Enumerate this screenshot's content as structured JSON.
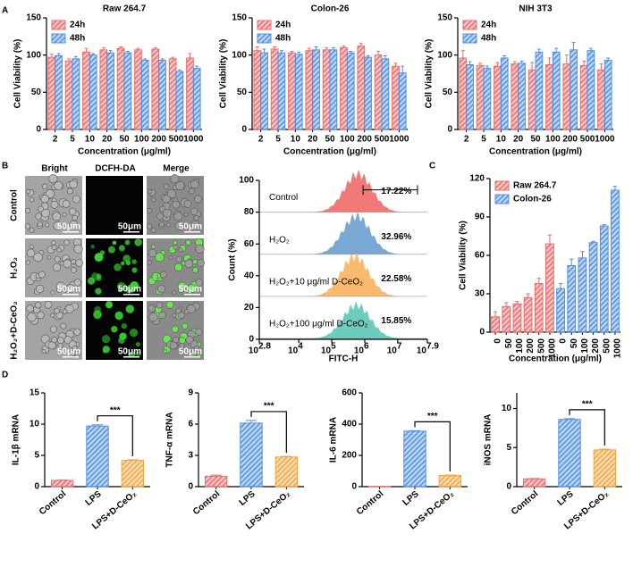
{
  "panel_labels": [
    "A",
    "B",
    "C",
    "D"
  ],
  "micrographs": {
    "columns": [
      "Bright",
      "DCFH-DA",
      "Merge"
    ],
    "rows": [
      "Control",
      "H₂O₂",
      "H₂O₂+D-CeO₂"
    ],
    "scale_bar": "50μm"
  },
  "chart_data": [
    {
      "type": "bar",
      "title": "Raw 264.7",
      "xlabel": "Concentration (μg/ml)",
      "ylabel": "Cell Viability (%)",
      "categories": [
        "2",
        "5",
        "10",
        "20",
        "50",
        "100",
        "200",
        "500",
        "1000"
      ],
      "ylim": [
        0,
        150
      ],
      "yticks": [
        0,
        50,
        100,
        150
      ],
      "legend": "upper left",
      "series": [
        {
          "name": "24h",
          "color": "#ee6b6b",
          "values": [
            97,
            92,
            104,
            107,
            109,
            107,
            108,
            95,
            96
          ],
          "errors": [
            4,
            3,
            5,
            3,
            2,
            2,
            2,
            2,
            6
          ]
        },
        {
          "name": "48h",
          "color": "#4f8fe8",
          "values": [
            99,
            95,
            100,
            103,
            103,
            93,
            93,
            78,
            82
          ],
          "errors": [
            3,
            3,
            2,
            3,
            2,
            2,
            2,
            2,
            3
          ]
        }
      ]
    },
    {
      "type": "bar",
      "title": "Colon-26",
      "xlabel": "Concentration (μg/ml)",
      "ylabel": "Cell Viability (%)",
      "categories": [
        "2",
        "5",
        "10",
        "20",
        "50",
        "100",
        "200",
        "500",
        "1000"
      ],
      "ylim": [
        0,
        150
      ],
      "yticks": [
        0,
        50,
        100,
        150
      ],
      "legend": "upper left",
      "series": [
        {
          "name": "24h",
          "color": "#ee6b6b",
          "values": [
            106,
            108,
            103,
            106,
            107,
            110,
            112,
            100,
            85
          ],
          "errors": [
            5,
            3,
            2,
            3,
            3,
            2,
            4,
            5,
            4
          ]
        },
        {
          "name": "48h",
          "color": "#4f8fe8",
          "values": [
            103,
            103,
            101,
            107,
            107,
            103,
            97,
            95,
            76
          ],
          "errors": [
            5,
            3,
            3,
            4,
            3,
            2,
            2,
            4,
            9
          ]
        }
      ]
    },
    {
      "type": "bar",
      "title": "NIH 3T3",
      "xlabel": "Concentration (μg/ml)",
      "ylabel": "Cell Viability (%)",
      "categories": [
        "2",
        "5",
        "10",
        "20",
        "50",
        "100",
        "200",
        "500",
        "1000"
      ],
      "ylim": [
        0,
        150
      ],
      "yticks": [
        0,
        50,
        100,
        150
      ],
      "legend": "upper left",
      "series": [
        {
          "name": "24h",
          "color": "#ee6b6b",
          "values": [
            96,
            86,
            85,
            88,
            80,
            87,
            88,
            86,
            80
          ],
          "errors": [
            10,
            3,
            5,
            3,
            10,
            9,
            12,
            6,
            8
          ]
        },
        {
          "name": "48h",
          "color": "#4f8fe8",
          "values": [
            87,
            82,
            96,
            89,
            104,
            104,
            107,
            106,
            93
          ],
          "errors": [
            4,
            3,
            3,
            3,
            4,
            5,
            10,
            3,
            3
          ]
        }
      ]
    },
    {
      "type": "flow",
      "xlabel": "FITC-H",
      "ylabel": "Count (%)",
      "ylim": [
        0,
        100
      ],
      "yticks": [
        0,
        20,
        40,
        60,
        80,
        100
      ],
      "log_x": true,
      "xlim": [
        630.957,
        79432823.5
      ],
      "xticks": [
        {
          "value": 630.957,
          "label": "10",
          "sup": "2.8"
        },
        {
          "value": 10000,
          "label": "10",
          "sup": "4"
        },
        {
          "value": 100000,
          "label": "10",
          "sup": "5"
        },
        {
          "value": 1000000,
          "label": "10",
          "sup": "6"
        },
        {
          "value": 10000000,
          "label": "10",
          "sup": "7"
        },
        {
          "value": 79432823.5,
          "label": "10",
          "sup": "7.9"
        }
      ],
      "samples": [
        {
          "name": "Control",
          "gate": "17.22%",
          "color": "#f06a68"
        },
        {
          "name": "H₂O₂",
          "gate": "32.96%",
          "color": "#6b9ed0"
        },
        {
          "name": "H₂O₂+10 μg/ml D-CeO₂",
          "gate": "22.58%",
          "color": "#f7b25c"
        },
        {
          "name": "H₂O₂+100 μg/ml D-CeO₂",
          "gate": "15.85%",
          "color": "#5ec7b6"
        }
      ]
    },
    {
      "type": "bar",
      "xlabel": "Concentration (μg/ml)",
      "ylabel": "Cell Viability (%)",
      "categories": [
        "0",
        "50",
        "100",
        "200",
        "500",
        "1000",
        "0",
        "50",
        "100",
        "200",
        "500",
        "1000"
      ],
      "ylim": [
        0,
        120
      ],
      "yticks": [
        0,
        30,
        60,
        90,
        120
      ],
      "legend": "upper left",
      "series": [
        {
          "name": "Raw 264.7",
          "color": "#ee6b6b",
          "values": [
            12,
            20,
            22,
            27,
            38,
            69,
            null,
            null,
            null,
            null,
            null,
            null
          ],
          "errors": [
            4,
            3,
            2,
            3,
            4,
            7,
            null,
            null,
            null,
            null,
            null,
            null
          ]
        },
        {
          "name": "Colon-26",
          "color": "#4f8fe8",
          "values": [
            null,
            null,
            null,
            null,
            null,
            null,
            34,
            52,
            58,
            70,
            83,
            111
          ],
          "errors": [
            null,
            null,
            null,
            null,
            null,
            null,
            4,
            5,
            5,
            1,
            1,
            3
          ]
        }
      ]
    },
    {
      "type": "bar",
      "ylabel": "IL-1β mRNA",
      "categories": [
        "Control",
        "LPS",
        "LPS+D-CeO₂"
      ],
      "ylim": [
        0,
        15
      ],
      "yticks": [
        0,
        5,
        10,
        15
      ],
      "annotation": "***",
      "series": [
        {
          "colors": [
            "#ee6b6b",
            "#4f8fe8",
            "#f5a43c"
          ],
          "values": [
            1,
            9.7,
            4.2
          ],
          "errors": [
            0.05,
            0.2,
            0.1
          ]
        }
      ]
    },
    {
      "type": "bar",
      "ylabel": "TNF-α mRNA",
      "categories": [
        "Control",
        "LPS",
        "LPS+D-CeO₂"
      ],
      "ylim": [
        0,
        9
      ],
      "yticks": [
        0,
        3,
        6,
        9
      ],
      "annotation": "***",
      "series": [
        {
          "colors": [
            "#ee6b6b",
            "#4f8fe8",
            "#f5a43c"
          ],
          "values": [
            1,
            6.1,
            2.85
          ],
          "errors": [
            0.1,
            0.25,
            0.05
          ]
        }
      ]
    },
    {
      "type": "bar",
      "ylabel": "IL-6 mRNA",
      "categories": [
        "Control",
        "LPS",
        "LPS+D-CeO₂"
      ],
      "ylim": [
        0,
        600
      ],
      "yticks": [
        0,
        200,
        400,
        600
      ],
      "annotation": "***",
      "series": [
        {
          "colors": [
            "#ee6b6b",
            "#4f8fe8",
            "#f5a43c"
          ],
          "values": [
            1,
            355,
            72
          ],
          "errors": [
            0,
            3,
            2
          ]
        }
      ]
    },
    {
      "type": "bar",
      "ylabel": "iNOS mRNA",
      "categories": [
        "Control",
        "LPS",
        "LPS+D-CeO₂"
      ],
      "ylim": [
        0,
        12
      ],
      "yticks": [
        0,
        5,
        10
      ],
      "annotation": "***",
      "series": [
        {
          "colors": [
            "#ee6b6b",
            "#4f8fe8",
            "#f5a43c"
          ],
          "values": [
            1,
            8.6,
            4.7
          ],
          "errors": [
            0.05,
            0.1,
            0.1
          ]
        }
      ]
    }
  ]
}
